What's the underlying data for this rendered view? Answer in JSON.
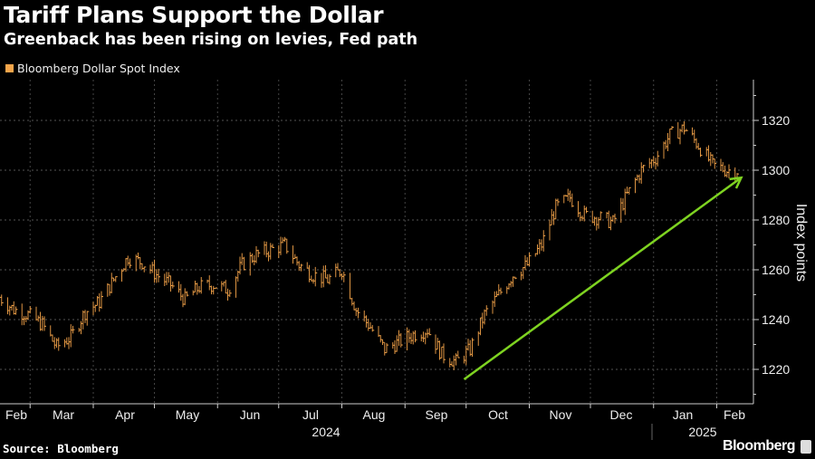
{
  "title": "Tariff Plans Support the Dollar",
  "subtitle": "Greenback has been rising on levies, Fed path",
  "source": "Source: Bloomberg",
  "brand": "Bloomberg",
  "chart_data": {
    "type": "line",
    "title": "Tariff Plans Support the Dollar",
    "subtitle": "Greenback has been rising on levies, Fed path",
    "xlabel": "",
    "ylabel": "Index points",
    "ylim": [
      1206.5,
      1336
    ],
    "yticks": [
      1220,
      1240,
      1260,
      1280,
      1300,
      1320
    ],
    "xticks": [
      "Feb",
      "Mar",
      "Apr",
      "May",
      "Jun",
      "Jul",
      "Aug",
      "Sep",
      "Oct",
      "Nov",
      "Dec",
      "Jan",
      "Feb"
    ],
    "years": [
      "2024",
      "2025"
    ],
    "grid": true,
    "legend_position": "top-left",
    "series": [
      {
        "name": "Bloomberg Dollar Spot Index",
        "color": "#f5a54a",
        "points": [
          [
            "2024-02-15",
            1249
          ],
          [
            "2024-02-22",
            1244
          ],
          [
            "2024-02-29",
            1242
          ],
          [
            "2024-03-07",
            1238
          ],
          [
            "2024-03-14",
            1229
          ],
          [
            "2024-03-21",
            1233
          ],
          [
            "2024-03-28",
            1243
          ],
          [
            "2024-04-04",
            1247
          ],
          [
            "2024-04-11",
            1256
          ],
          [
            "2024-04-18",
            1265
          ],
          [
            "2024-04-25",
            1263
          ],
          [
            "2024-05-02",
            1258
          ],
          [
            "2024-05-09",
            1254
          ],
          [
            "2024-05-16",
            1248
          ],
          [
            "2024-05-23",
            1253
          ],
          [
            "2024-05-30",
            1254
          ],
          [
            "2024-06-06",
            1252
          ],
          [
            "2024-06-13",
            1262
          ],
          [
            "2024-06-20",
            1266
          ],
          [
            "2024-06-27",
            1268
          ],
          [
            "2024-07-04",
            1270
          ],
          [
            "2024-07-11",
            1262
          ],
          [
            "2024-07-18",
            1258
          ],
          [
            "2024-07-25",
            1256
          ],
          [
            "2024-08-01",
            1260
          ],
          [
            "2024-08-08",
            1244
          ],
          [
            "2024-08-15",
            1237
          ],
          [
            "2024-08-22",
            1228
          ],
          [
            "2024-08-29",
            1231
          ],
          [
            "2024-09-05",
            1234
          ],
          [
            "2024-09-12",
            1236
          ],
          [
            "2024-09-19",
            1226
          ],
          [
            "2024-09-26",
            1223
          ],
          [
            "2024-10-03",
            1228
          ],
          [
            "2024-10-10",
            1242
          ],
          [
            "2024-10-17",
            1250
          ],
          [
            "2024-10-24",
            1258
          ],
          [
            "2024-10-31",
            1262
          ],
          [
            "2024-11-07",
            1270
          ],
          [
            "2024-11-14",
            1285
          ],
          [
            "2024-11-21",
            1289
          ],
          [
            "2024-11-28",
            1282
          ],
          [
            "2024-12-05",
            1281
          ],
          [
            "2024-12-12",
            1279
          ],
          [
            "2024-12-19",
            1290
          ],
          [
            "2024-12-26",
            1300
          ],
          [
            "2025-01-02",
            1305
          ],
          [
            "2025-01-09",
            1314
          ],
          [
            "2025-01-16",
            1317
          ],
          [
            "2025-01-23",
            1310
          ],
          [
            "2025-01-30",
            1302
          ],
          [
            "2025-02-06",
            1300
          ],
          [
            "2025-02-12",
            1300
          ]
        ]
      }
    ],
    "annotations": [
      {
        "type": "arrow",
        "color": "#7ed321",
        "from": [
          "2024-09-30",
          1216
        ],
        "to": [
          "2025-02-13",
          1297
        ]
      }
    ]
  }
}
